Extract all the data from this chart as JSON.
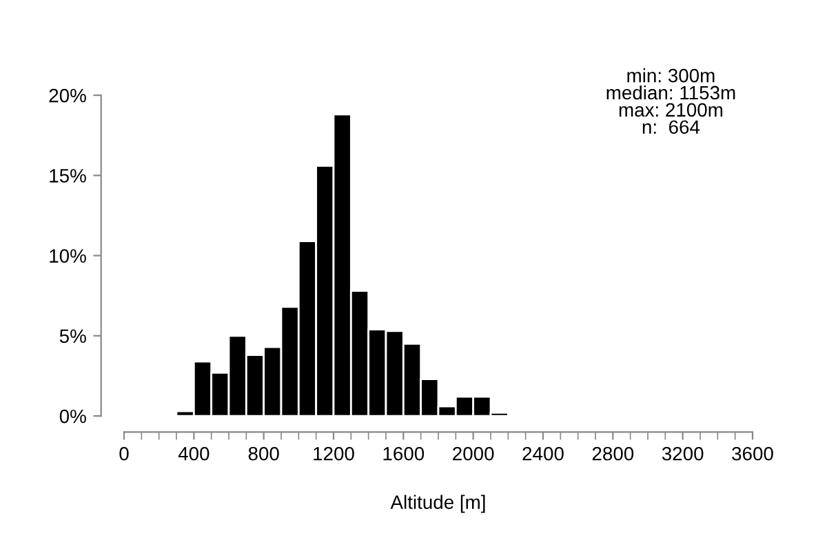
{
  "chart_data": {
    "type": "histogram",
    "xlabel": "Altitude [m]",
    "bins": [
      300,
      400,
      500,
      600,
      700,
      800,
      900,
      1000,
      1100,
      1200,
      1300,
      1400,
      1500,
      1600,
      1700,
      1800,
      1900,
      2000,
      2100,
      2200
    ],
    "values": [
      0.3,
      3.4,
      2.7,
      5.0,
      3.8,
      4.3,
      6.8,
      10.9,
      15.6,
      18.8,
      7.8,
      5.4,
      5.3,
      4.5,
      2.3,
      0.6,
      1.2,
      1.2,
      0.2
    ],
    "color": "#000000",
    "xlim": [
      0,
      3600
    ],
    "xticks": [
      0,
      {
        "value": 100,
        "label": null
      },
      {
        "value": 200,
        "label": null
      },
      {
        "value": 300,
        "label": null
      },
      400,
      {
        "value": 500,
        "label": null
      },
      {
        "value": 600,
        "label": null
      },
      {
        "value": 700,
        "label": null
      },
      800,
      {
        "value": 900,
        "label": null
      },
      {
        "value": 1000,
        "label": null
      },
      {
        "value": 1100,
        "label": null
      },
      1200,
      {
        "value": 1300,
        "label": null
      },
      {
        "value": 1400,
        "label": null
      },
      {
        "value": 1500,
        "label": null
      },
      1600,
      {
        "value": 1700,
        "label": null
      },
      {
        "value": 1800,
        "label": null
      },
      {
        "value": 1900,
        "label": null
      },
      2000,
      {
        "value": 2100,
        "label": null
      },
      {
        "value": 2200,
        "label": null
      },
      {
        "value": 2300,
        "label": null
      },
      2400,
      {
        "value": 2500,
        "label": null
      },
      {
        "value": 2600,
        "label": null
      },
      {
        "value": 2700,
        "label": null
      },
      2800,
      {
        "value": 2900,
        "label": null
      },
      {
        "value": 3000,
        "label": null
      },
      {
        "value": 3100,
        "label": null
      },
      3200,
      {
        "value": 3300,
        "label": null
      },
      {
        "value": 3400,
        "label": null
      },
      {
        "value": 3500,
        "label": null
      },
      3600
    ],
    "ylim": [
      -1,
      20
    ],
    "yticks": [
      {
        "value": 0,
        "label": "0%"
      },
      {
        "value": 5,
        "label": "5%"
      },
      {
        "value": 10,
        "label": "10%"
      },
      {
        "value": 15,
        "label": "15%"
      },
      {
        "value": 20,
        "label": "20%"
      }
    ],
    "grid": false,
    "legend": false,
    "annotations": [
      "min: 300m\nmedian: 1153m\nmax: 2100m\nn:  664"
    ]
  }
}
